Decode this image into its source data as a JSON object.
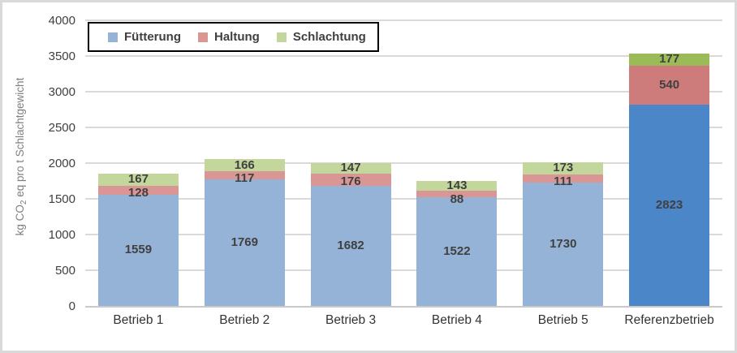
{
  "chart_data": {
    "type": "bar",
    "stacked": true,
    "title": "",
    "xlabel": "",
    "ylabel_parts": {
      "prefix": "kg CO",
      "sub": "2",
      "suffix": " eq pro t Schlachtgewicht"
    },
    "ylim": [
      0,
      4000
    ],
    "ytick_step": 500,
    "yticks": [
      0,
      500,
      1000,
      1500,
      2000,
      2500,
      3000,
      3500,
      4000
    ],
    "grid": true,
    "legend_position": "top-left",
    "categories": [
      "Betrieb 1",
      "Betrieb 2",
      "Betrieb 3",
      "Betrieb 4",
      "Betrieb 5",
      "Referenzbetrieb"
    ],
    "highlight_category": "Referenzbetrieb",
    "series": [
      {
        "name": "Fütterung",
        "values": [
          1559,
          1769,
          1682,
          1522,
          1730,
          2823
        ],
        "color": "#95B3D7",
        "highlight_color": "#4A86C8"
      },
      {
        "name": "Haltung",
        "values": [
          128,
          117,
          176,
          88,
          111,
          540
        ],
        "color": "#D99694",
        "highlight_color": "#CD7B7B"
      },
      {
        "name": "Schlachtung",
        "values": [
          167,
          166,
          147,
          143,
          173,
          177
        ],
        "color": "#C3D69B",
        "highlight_color": "#9BBB59"
      }
    ]
  },
  "styles": {
    "grid_color": "#D9D9D9",
    "axis_line_color": "#C9C9C9",
    "frame_border_color": "#D9D9D9",
    "legend_border_color": "#000000",
    "data_label_color": "#404040",
    "tick_label_color": "#404040",
    "category_label_color": "#333333",
    "axis_title_color": "#7F7F7F",
    "background": "#FFFFFF"
  }
}
